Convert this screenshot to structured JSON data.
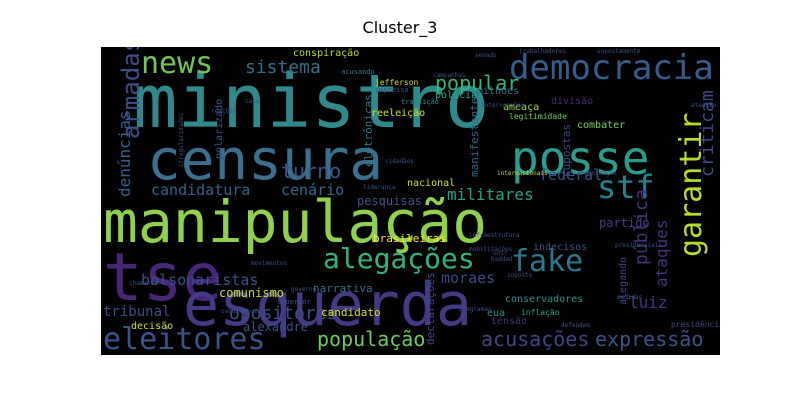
{
  "title": "Cluster_3",
  "words": [
    {
      "text": "ministro",
      "color": "#2f8a8d"
    },
    {
      "text": "censura",
      "color": "#3a6f8f"
    },
    {
      "text": "manipulação",
      "color": "#8fd14f"
    },
    {
      "text": "tse",
      "color": "#482677"
    },
    {
      "text": "esquerda",
      "color": "#443983"
    },
    {
      "text": "posse",
      "color": "#2a9d8c"
    },
    {
      "text": "democracia",
      "color": "#365d8d"
    },
    {
      "text": "news",
      "color": "#73c653"
    },
    {
      "text": "garantir",
      "color": "#b5de2b"
    },
    {
      "text": "stf",
      "color": "#25838e"
    },
    {
      "text": "alegações",
      "color": "#2fb47c"
    },
    {
      "text": "fake",
      "color": "#2a778e"
    },
    {
      "text": "eleitores",
      "color": "#3b528b"
    },
    {
      "text": "armadas",
      "color": "#3e4c8a"
    },
    {
      "text": "sistema",
      "color": "#2c728e"
    },
    {
      "text": "popular",
      "color": "#36b677"
    },
    {
      "text": "turno",
      "color": "#38588c"
    },
    {
      "text": "população",
      "color": "#6ccd5a"
    },
    {
      "text": "acusações",
      "color": "#414487"
    },
    {
      "text": "expressão",
      "color": "#39568c"
    },
    {
      "text": "opositores",
      "color": "#3d4e8a"
    },
    {
      "text": "pública",
      "color": "#46307e"
    },
    {
      "text": "criticam",
      "color": "#3f4788"
    },
    {
      "text": "denúncias",
      "color": "#355f8d"
    },
    {
      "text": "candidatura",
      "color": "#33638d"
    },
    {
      "text": "militares",
      "color": "#20a486"
    },
    {
      "text": "federal",
      "color": "#3c4f8a"
    },
    {
      "text": "bolsonaristas",
      "color": "#3c508b"
    },
    {
      "text": "cenário",
      "color": "#31688e"
    },
    {
      "text": "pesquisas",
      "color": "#3a548c"
    },
    {
      "text": "partido",
      "color": "#424186"
    },
    {
      "text": "ataques",
      "color": "#46327e"
    },
    {
      "text": "luiz",
      "color": "#453581"
    },
    {
      "text": "moraes",
      "color": "#3e4989"
    },
    {
      "text": "tribunal",
      "color": "#3e4a89"
    },
    {
      "text": "alexandre",
      "color": "#39558c"
    },
    {
      "text": "comunismo",
      "color": "#c2df23"
    },
    {
      "text": "narrativa",
      "color": "#2e6e8e"
    },
    {
      "text": "candidato",
      "color": "#d8e219"
    },
    {
      "text": "brasileiras",
      "color": "#fde725"
    },
    {
      "text": "declarações",
      "color": "#404688"
    },
    {
      "text": "nacional",
      "color": "#d0e11c"
    },
    {
      "text": "manifestantes",
      "color": "#31688e"
    },
    {
      "text": "eletrônicas",
      "color": "#2a788e"
    },
    {
      "text": "supostas",
      "color": "#3f4889"
    },
    {
      "text": "combater",
      "color": "#7ad151"
    },
    {
      "text": "reeleição",
      "color": "#d2e21b"
    },
    {
      "text": "polícia",
      "color": "#22a785"
    },
    {
      "text": "milhões",
      "color": "#2c738e"
    },
    {
      "text": "ameaça",
      "color": "#a0da39"
    },
    {
      "text": "divisão",
      "color": "#472d7b"
    },
    {
      "text": "legitimidade",
      "color": "#6ece58"
    },
    {
      "text": "conspiração",
      "color": "#b8de29"
    },
    {
      "text": "jefferson",
      "color": "#c8e020"
    },
    {
      "text": "polarizado",
      "color": "#3b528b"
    },
    {
      "text": "decisão",
      "color": "#cae11f"
    },
    {
      "text": "conservadores",
      "color": "#21918c"
    },
    {
      "text": "eua",
      "color": "#21918c"
    },
    {
      "text": "tensão",
      "color": "#472f7d"
    },
    {
      "text": "indecisos",
      "color": "#3b528b"
    },
    {
      "text": "alegando",
      "color": "#404588"
    },
    {
      "text": "inflação",
      "color": "#1fa088"
    },
    {
      "text": "presidência",
      "color": "#3e4989"
    },
    {
      "text": "internacionais",
      "color": "#c0df25"
    },
    {
      "text": "transição",
      "color": "#20928c"
    },
    {
      "text": "impressa",
      "color": "#3b528b"
    },
    {
      "text": "acusando",
      "color": "#2a788e"
    },
    {
      "text": "campanhas",
      "color": "#3b528b"
    },
    {
      "text": "intervenções",
      "color": "#3e4a89"
    },
    {
      "text": "reações",
      "color": "#3b528b"
    },
    {
      "text": "caso",
      "color": "#3b528b"
    },
    {
      "text": "senado",
      "color": "#3b528b"
    },
    {
      "text": "trabalhadores",
      "color": "#3b528b"
    },
    {
      "text": "supostamente",
      "color": "#3b528b"
    },
    {
      "text": "atenção",
      "color": "#3b528b"
    },
    {
      "text": "organização",
      "color": "#3b528b"
    },
    {
      "text": "infraestrutura",
      "color": "#3b528b"
    },
    {
      "text": "mobilizações",
      "color": "#3b528b"
    },
    {
      "text": "haddad",
      "color": "#3b528b"
    },
    {
      "text": "chamando",
      "color": "#3b528b"
    },
    {
      "text": "movimentos",
      "color": "#3b528b"
    },
    {
      "text": "superior",
      "color": "#3b528b"
    },
    {
      "text": "cidadãos",
      "color": "#3b528b"
    },
    {
      "text": "liderança",
      "color": "#3b528b"
    },
    {
      "text": "programas",
      "color": "#3b528b"
    },
    {
      "text": "suposto",
      "color": "#3b528b"
    },
    {
      "text": "defendem",
      "color": "#3b528b"
    },
    {
      "text": "medidas",
      "color": "#3b528b"
    },
    {
      "text": "presidenciais",
      "color": "#3b528b"
    },
    {
      "text": "governo",
      "color": "#3b528b"
    },
    {
      "text": "irregularidades",
      "color": "#3b528b"
    },
    {
      "text": "candidatos",
      "color": "#3b528b"
    },
    {
      "text": "unir",
      "color": "#3b528b"
    }
  ]
}
